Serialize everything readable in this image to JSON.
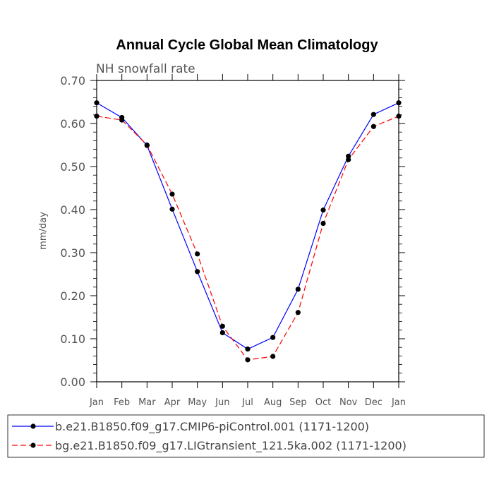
{
  "chart_data": {
    "type": "line",
    "title": "Annual Cycle Global Mean Climatology",
    "subtitle": "NH snowfall rate",
    "ylabel": "mm/day",
    "xlabel": "",
    "categories": [
      "Jan",
      "Feb",
      "Mar",
      "Apr",
      "May",
      "Jun",
      "Jul",
      "Aug",
      "Sep",
      "Oct",
      "Nov",
      "Dec",
      "Jan"
    ],
    "ylim": [
      0.0,
      0.7
    ],
    "yticks": [
      "0.00",
      "0.10",
      "0.20",
      "0.30",
      "0.40",
      "0.50",
      "0.60",
      "0.70"
    ],
    "series": [
      {
        "name": "b.e21.B1850.f09_g17.CMIP6-piControl.001 (1171-1200)",
        "color": "#0000ff",
        "dash": "solid",
        "values": [
          0.648,
          0.614,
          0.549,
          0.401,
          0.256,
          0.114,
          0.076,
          0.103,
          0.215,
          0.399,
          0.524,
          0.621,
          0.648
        ]
      },
      {
        "name": "bg.e21.B1850.f09_g17.LIGtransient_121.5ka.002 (1171-1200)",
        "color": "#ff0000",
        "dash": "dashed",
        "values": [
          0.617,
          0.608,
          0.55,
          0.436,
          0.297,
          0.129,
          0.051,
          0.059,
          0.161,
          0.368,
          0.516,
          0.593,
          0.617
        ]
      }
    ]
  }
}
